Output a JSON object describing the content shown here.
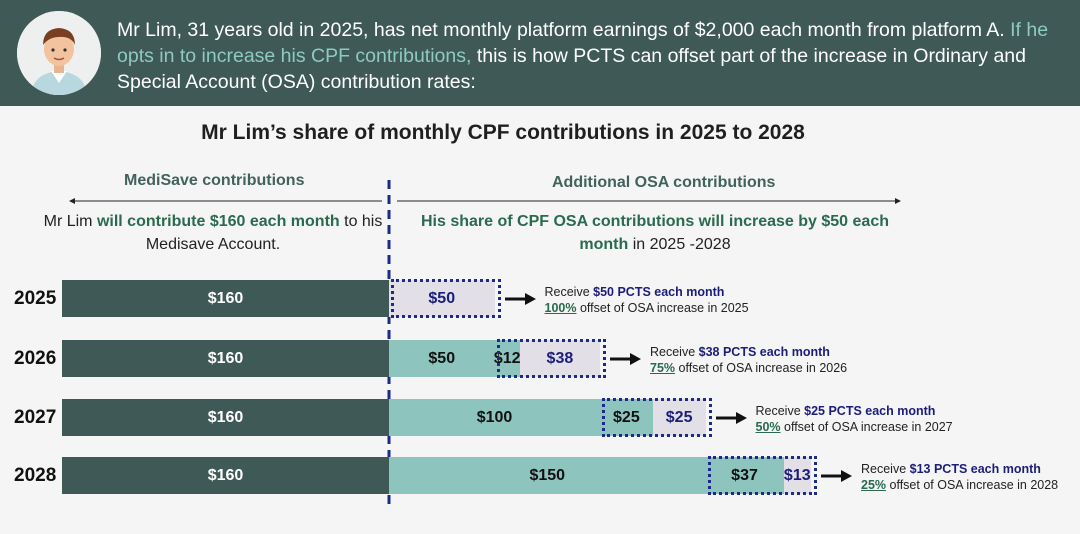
{
  "header": {
    "intro_part1": "Mr Lim, 31 years old in 2025, has net monthly platform earnings of $2,000 each month from platform A. ",
    "intro_highlight": "If he opts in to increase his CPF contributions,",
    "intro_part2": " this is how PCTS can offset part of the increase in Ordinary and Special Account (OSA) contribution rates:"
  },
  "chart_data": {
    "type": "bar",
    "stacked": true,
    "orientation": "horizontal",
    "title": "Mr Lim’s share of monthly CPF contributions in 2025 to 2028",
    "sections": {
      "medisave": {
        "heading": "MediSave contributions",
        "desc_pre": "Mr Lim ",
        "desc_bold": "will contribute $160 each month",
        "desc_post": " to his Medisave Account."
      },
      "osa": {
        "heading": "Additional OSA contributions",
        "desc_bold1": "His share of CPF OSA contributions will increase by $50 each month",
        "desc_post": " in 2025 -2028"
      }
    },
    "categories": [
      "2025",
      "2026",
      "2027",
      "2028"
    ],
    "series": [
      {
        "key": "medisave",
        "values": [
          160,
          160,
          160,
          160
        ],
        "labels": [
          "$160",
          "$160",
          "$160",
          "$160"
        ]
      },
      {
        "key": "osa_paid",
        "values": [
          0,
          50,
          100,
          150
        ],
        "labels": [
          "",
          "$50",
          "$100",
          "$150"
        ]
      },
      {
        "key": "osa_increase_not_offset",
        "values": [
          0,
          12,
          25,
          37
        ],
        "labels": [
          "",
          "$12",
          "$25",
          "$37"
        ]
      },
      {
        "key": "pcts_offset",
        "values": [
          50,
          38,
          25,
          13
        ],
        "labels": [
          "$50",
          "$38",
          "$25",
          "$13"
        ]
      }
    ],
    "notes": [
      {
        "pre": "Receive ",
        "bold": "$50 PCTS each month",
        "pct": "100%",
        "post": " offset of OSA increase in 2025"
      },
      {
        "pre": "Receive ",
        "bold": "$38 PCTS each month",
        "pct": "75%",
        "post": " offset of OSA increase in 2026"
      },
      {
        "pre": "Receive ",
        "bold": "$25 PCTS each month",
        "pct": "50%",
        "post": " offset of OSA increase in 2027"
      },
      {
        "pre": "Receive ",
        "bold": "$13 PCTS each month",
        "pct": "25%",
        "post": " offset of OSA increase in 2028"
      }
    ],
    "colors": {
      "medisave": "#3f5a56",
      "osa_paid": "#8dc4bd",
      "pcts": "#e2dfe6",
      "outline": "#1c2a8a"
    }
  }
}
